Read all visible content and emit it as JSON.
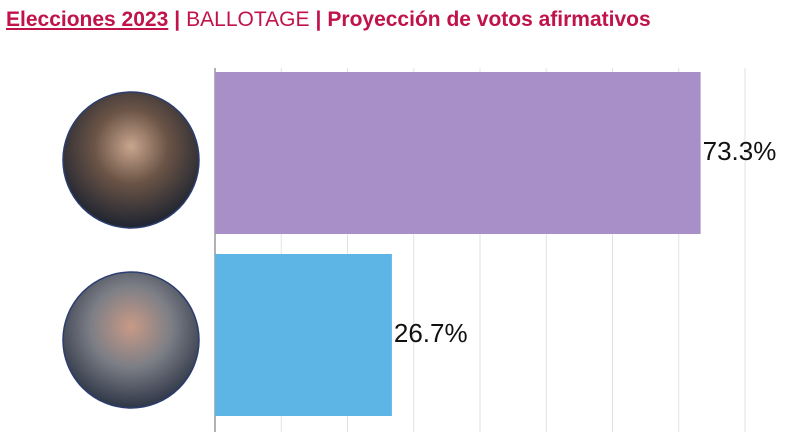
{
  "chart_data": {
    "type": "hbar",
    "title": {
      "parts": [
        "Elecciones 2023",
        "BALLOTAGE",
        "Proyección de votos afirmativos"
      ],
      "separator": "|"
    },
    "categories": [
      null,
      null
    ],
    "values": [
      73.3,
      26.7
    ],
    "value_labels": [
      "73.3%",
      "26.7%"
    ],
    "colors": [
      "#a98fc8",
      "#5cb5e4"
    ],
    "xlim": [
      0,
      80
    ],
    "xticks": [
      0,
      10,
      20,
      30,
      40,
      50,
      60,
      70,
      80
    ],
    "grid": true
  }
}
